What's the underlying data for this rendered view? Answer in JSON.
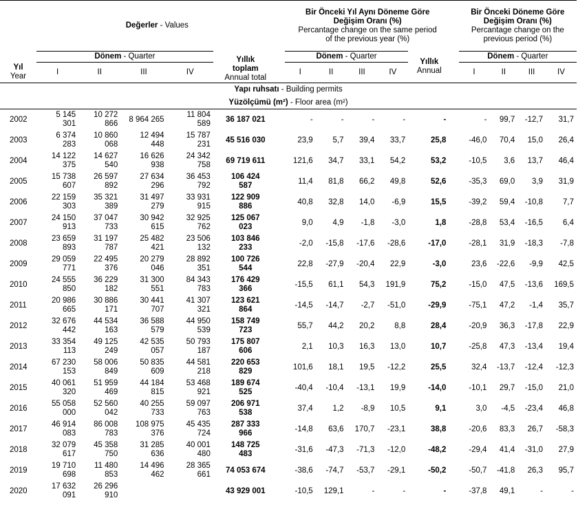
{
  "header": {
    "values_tr": "Değerler",
    "values_en": " - Values",
    "yoy_tr_1": "Bir Önceki Yıl Aynı Döneme Göre",
    "yoy_tr_2": "Değişim Oranı (%)",
    "yoy_en_1": "Percantage change on the same period",
    "yoy_en_2": "of the previous year (%)",
    "pp_tr_1": "Bir Önceki Döneme Göre",
    "pp_tr_2": "Değişim Oranı (%)",
    "pp_en_1": "Percantage change on the",
    "pp_en_2": "previous period (%)",
    "quarter_tr": "Dönem",
    "quarter_en": " - Quarter",
    "year_tr": "Yıl",
    "year_en": "Year",
    "annual_total_tr_1": "Yıllık",
    "annual_total_tr_2": "toplam",
    "annual_total_en": "Annual total",
    "annual_tr": "Yıllık",
    "annual_en": "Annual",
    "q1": "I",
    "q2": "II",
    "q3": "III",
    "q4": "IV"
  },
  "section": {
    "title_tr": "Yapı ruhsatı",
    "title_en": " - Building permits",
    "sub_tr": "Yüzölçümü (m²)",
    "sub_en": " - Floor area (m²)"
  },
  "rows": [
    {
      "year": "2002",
      "q": [
        [
          "5 145",
          "301"
        ],
        [
          "10 272",
          "866"
        ],
        [
          "8 964 265",
          ""
        ],
        [
          "11 804",
          "589"
        ]
      ],
      "total": [
        "36 187 021",
        ""
      ],
      "yoy": [
        "-",
        "-",
        "-",
        "-"
      ],
      "yoy_annual": "-",
      "pp": [
        "-",
        "99,7",
        "-12,7",
        "31,7"
      ]
    },
    {
      "year": "2003",
      "q": [
        [
          "6 374",
          "283"
        ],
        [
          "10 860",
          "068"
        ],
        [
          "12 494",
          "448"
        ],
        [
          "15 787",
          "231"
        ]
      ],
      "total": [
        "45 516 030",
        ""
      ],
      "yoy": [
        "23,9",
        "5,7",
        "39,4",
        "33,7"
      ],
      "yoy_annual": "25,8",
      "pp": [
        "-46,0",
        "70,4",
        "15,0",
        "26,4"
      ]
    },
    {
      "year": "2004",
      "q": [
        [
          "14 122",
          "375"
        ],
        [
          "14 627",
          "540"
        ],
        [
          "16 626",
          "938"
        ],
        [
          "24 342",
          "758"
        ]
      ],
      "total": [
        "69 719 611",
        ""
      ],
      "yoy": [
        "121,6",
        "34,7",
        "33,1",
        "54,2"
      ],
      "yoy_annual": "53,2",
      "pp": [
        "-10,5",
        "3,6",
        "13,7",
        "46,4"
      ]
    },
    {
      "year": "2005",
      "q": [
        [
          "15 738",
          "607"
        ],
        [
          "26 597",
          "892"
        ],
        [
          "27 634",
          "296"
        ],
        [
          "36 453",
          "792"
        ]
      ],
      "total": [
        "106 424",
        "587"
      ],
      "yoy": [
        "11,4",
        "81,8",
        "66,2",
        "49,8"
      ],
      "yoy_annual": "52,6",
      "pp": [
        "-35,3",
        "69,0",
        "3,9",
        "31,9"
      ]
    },
    {
      "year": "2006",
      "q": [
        [
          "22 159",
          "303"
        ],
        [
          "35 321",
          "389"
        ],
        [
          "31 497",
          "279"
        ],
        [
          "33 931",
          "915"
        ]
      ],
      "total": [
        "122 909",
        "886"
      ],
      "yoy": [
        "40,8",
        "32,8",
        "14,0",
        "-6,9"
      ],
      "yoy_annual": "15,5",
      "pp": [
        "-39,2",
        "59,4",
        "-10,8",
        "7,7"
      ]
    },
    {
      "year": "2007",
      "q": [
        [
          "24 150",
          "913"
        ],
        [
          "37 047",
          "733"
        ],
        [
          "30 942",
          "615"
        ],
        [
          "32 925",
          "762"
        ]
      ],
      "total": [
        "125 067",
        "023"
      ],
      "yoy": [
        "9,0",
        "4,9",
        "-1,8",
        "-3,0"
      ],
      "yoy_annual": "1,8",
      "pp": [
        "-28,8",
        "53,4",
        "-16,5",
        "6,4"
      ]
    },
    {
      "year": "2008",
      "q": [
        [
          "23 659",
          "893"
        ],
        [
          "31 197",
          "787"
        ],
        [
          "25 482",
          "421"
        ],
        [
          "23 506",
          "132"
        ]
      ],
      "total": [
        "103 846",
        "233"
      ],
      "yoy": [
        "-2,0",
        "-15,8",
        "-17,6",
        "-28,6"
      ],
      "yoy_annual": "-17,0",
      "pp": [
        "-28,1",
        "31,9",
        "-18,3",
        "-7,8"
      ]
    },
    {
      "year": "2009",
      "q": [
        [
          "29 059",
          "771"
        ],
        [
          "22 495",
          "376"
        ],
        [
          "20 279",
          "046"
        ],
        [
          "28 892",
          "351"
        ]
      ],
      "total": [
        "100 726",
        "544"
      ],
      "yoy": [
        "22,8",
        "-27,9",
        "-20,4",
        "22,9"
      ],
      "yoy_annual": "-3,0",
      "pp": [
        "23,6",
        "-22,6",
        "-9,9",
        "42,5"
      ]
    },
    {
      "year": "2010",
      "q": [
        [
          "24 555",
          "850"
        ],
        [
          "36 229",
          "182"
        ],
        [
          "31 300",
          "551"
        ],
        [
          "84 343",
          "783"
        ]
      ],
      "total": [
        "176 429",
        "366"
      ],
      "yoy": [
        "-15,5",
        "61,1",
        "54,3",
        "191,9"
      ],
      "yoy_annual": "75,2",
      "pp": [
        "-15,0",
        "47,5",
        "-13,6",
        "169,5"
      ]
    },
    {
      "year": "2011",
      "q": [
        [
          "20 986",
          "665"
        ],
        [
          "30 886",
          "171"
        ],
        [
          "30 441",
          "707"
        ],
        [
          "41 307",
          "321"
        ]
      ],
      "total": [
        "123 621",
        "864"
      ],
      "yoy": [
        "-14,5",
        "-14,7",
        "-2,7",
        "-51,0"
      ],
      "yoy_annual": "-29,9",
      "pp": [
        "-75,1",
        "47,2",
        "-1,4",
        "35,7"
      ]
    },
    {
      "year": "2012",
      "q": [
        [
          "32 676",
          "442"
        ],
        [
          "44 534",
          "163"
        ],
        [
          "36 588",
          "579"
        ],
        [
          "44 950",
          "539"
        ]
      ],
      "total": [
        "158 749",
        "723"
      ],
      "yoy": [
        "55,7",
        "44,2",
        "20,2",
        "8,8"
      ],
      "yoy_annual": "28,4",
      "pp": [
        "-20,9",
        "36,3",
        "-17,8",
        "22,9"
      ]
    },
    {
      "year": "2013",
      "q": [
        [
          "33 354",
          "113"
        ],
        [
          "49 125",
          "249"
        ],
        [
          "42 535",
          "057"
        ],
        [
          "50 793",
          "187"
        ]
      ],
      "total": [
        "175 807",
        "606"
      ],
      "yoy": [
        "2,1",
        "10,3",
        "16,3",
        "13,0"
      ],
      "yoy_annual": "10,7",
      "pp": [
        "-25,8",
        "47,3",
        "-13,4",
        "19,4"
      ]
    },
    {
      "year": "2014",
      "q": [
        [
          "67 230",
          "153"
        ],
        [
          "58 006",
          "849"
        ],
        [
          "50 835",
          "609"
        ],
        [
          "44 581",
          "218"
        ]
      ],
      "total": [
        "220 653",
        "829"
      ],
      "yoy": [
        "101,6",
        "18,1",
        "19,5",
        "-12,2"
      ],
      "yoy_annual": "25,5",
      "pp": [
        "32,4",
        "-13,7",
        "-12,4",
        "-12,3"
      ]
    },
    {
      "year": "2015",
      "q": [
        [
          "40 061",
          "320"
        ],
        [
          "51 959",
          "469"
        ],
        [
          "44 184",
          "815"
        ],
        [
          "53 468",
          "921"
        ]
      ],
      "total": [
        "189 674",
        "525"
      ],
      "yoy": [
        "-40,4",
        "-10,4",
        "-13,1",
        "19,9"
      ],
      "yoy_annual": "-14,0",
      "pp": [
        "-10,1",
        "29,7",
        "-15,0",
        "21,0"
      ]
    },
    {
      "year": "2016",
      "q": [
        [
          "55 058",
          "000"
        ],
        [
          "52 560",
          "042"
        ],
        [
          "40 255",
          "733"
        ],
        [
          "59 097",
          "763"
        ]
      ],
      "total": [
        "206 971",
        "538"
      ],
      "yoy": [
        "37,4",
        "1,2",
        "-8,9",
        "10,5"
      ],
      "yoy_annual": "9,1",
      "pp": [
        "3,0",
        "-4,5",
        "-23,4",
        "46,8"
      ]
    },
    {
      "year": "2017",
      "q": [
        [
          "46 914",
          "083"
        ],
        [
          "86 008",
          "783"
        ],
        [
          "108 975",
          "376"
        ],
        [
          "45 435",
          "724"
        ]
      ],
      "total": [
        "287 333",
        "966"
      ],
      "yoy": [
        "-14,8",
        "63,6",
        "170,7",
        "-23,1"
      ],
      "yoy_annual": "38,8",
      "pp": [
        "-20,6",
        "83,3",
        "26,7",
        "-58,3"
      ]
    },
    {
      "year": "2018",
      "q": [
        [
          "32 079",
          "617"
        ],
        [
          "45 358",
          "750"
        ],
        [
          "31 285",
          "636"
        ],
        [
          "40 001",
          "480"
        ]
      ],
      "total": [
        "148 725",
        "483"
      ],
      "yoy": [
        "-31,6",
        "-47,3",
        "-71,3",
        "-12,0"
      ],
      "yoy_annual": "-48,2",
      "pp": [
        "-29,4",
        "41,4",
        "-31,0",
        "27,9"
      ]
    },
    {
      "year": "2019",
      "q": [
        [
          "19 710",
          "698"
        ],
        [
          "11 480",
          "853"
        ],
        [
          "14 496",
          "462"
        ],
        [
          "28 365",
          "661"
        ]
      ],
      "total": [
        "74 053 674",
        ""
      ],
      "yoy": [
        "-38,6",
        "-74,7",
        "-53,7",
        "-29,1"
      ],
      "yoy_annual": "-50,2",
      "pp": [
        "-50,7",
        "-41,8",
        "26,3",
        "95,7"
      ]
    },
    {
      "year": "2020",
      "q": [
        [
          "17 632",
          "091"
        ],
        [
          "26 296",
          "910"
        ],
        [
          "",
          ""
        ],
        [
          "",
          ""
        ]
      ],
      "total": [
        "43 929 001",
        ""
      ],
      "yoy": [
        "-10,5",
        "129,1",
        "-",
        "-"
      ],
      "yoy_annual": "-",
      "pp": [
        "-37,8",
        "49,1",
        "-",
        "-"
      ]
    }
  ]
}
